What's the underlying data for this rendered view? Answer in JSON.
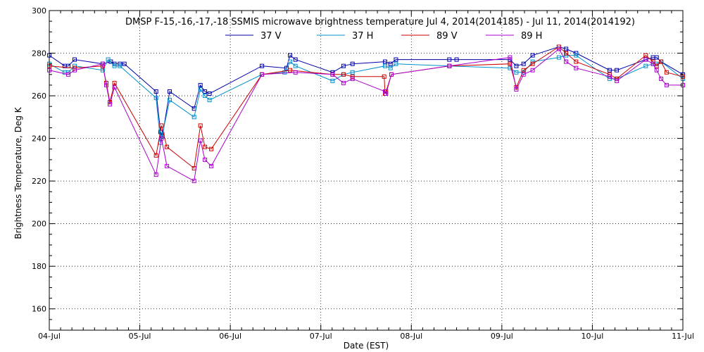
{
  "chart_data": {
    "type": "line",
    "title": "DMSP F-15,-16,-17,-18 SSMIS microwave brightness temperature Jul  4, 2014(2014185) - Jul 11, 2014(2014192)",
    "xlabel": "Date (EST)",
    "ylabel": "Brightness Temperature, Deg K",
    "xlim": [
      0,
      7
    ],
    "ylim": [
      150,
      300
    ],
    "y_ticks": [
      160,
      180,
      200,
      220,
      240,
      260,
      280,
      300
    ],
    "x_ticks": [
      0,
      1,
      2,
      3,
      4,
      5,
      6,
      7
    ],
    "x_tick_labels": [
      "04-Jul",
      "05-Jul",
      "06-Jul",
      "07-Jul",
      "08-Jul",
      "09-Jul",
      "10-Jul",
      "11-Jul"
    ],
    "x_units": "days since 04-Jul 00:00 EST",
    "grid": true,
    "legend_position": "top",
    "series": [
      {
        "name": "37 V",
        "color": "#0000aa",
        "x": [
          0.0,
          0.17,
          0.21,
          0.28,
          0.59,
          0.68,
          0.72,
          0.78,
          0.83,
          1.18,
          1.23,
          1.25,
          1.33,
          1.6,
          1.67,
          1.72,
          1.77,
          2.35,
          2.62,
          2.66,
          2.72,
          3.13,
          3.25,
          3.35,
          3.71,
          3.77,
          3.83,
          4.42,
          4.5,
          5.09,
          5.16,
          5.24,
          5.34,
          5.63,
          5.71,
          5.82,
          6.19,
          6.27,
          6.59,
          6.67,
          6.71,
          6.76,
          7.0
        ],
        "y": [
          279,
          274,
          274,
          277,
          275,
          276,
          275,
          275,
          275,
          262,
          243,
          241,
          262,
          254,
          265,
          262,
          261,
          274,
          273,
          279,
          277,
          271,
          274,
          275,
          276,
          275,
          277,
          277,
          277,
          277,
          274,
          275,
          279,
          283,
          282,
          280,
          272,
          272,
          277,
          278,
          278,
          276,
          270
        ]
      },
      {
        "name": "37 H",
        "color": "#0090cc",
        "x": [
          0.0,
          0.17,
          0.21,
          0.28,
          0.59,
          0.65,
          0.72,
          0.78,
          1.18,
          1.23,
          1.25,
          1.33,
          1.6,
          1.67,
          1.72,
          1.77,
          2.35,
          2.6,
          2.66,
          2.72,
          3.13,
          3.25,
          3.35,
          3.71,
          3.77,
          3.83,
          4.42,
          5.09,
          5.16,
          5.24,
          5.34,
          5.63,
          5.71,
          5.82,
          6.19,
          6.27,
          6.59,
          6.67,
          6.71,
          6.76,
          7.0
        ],
        "y": [
          275,
          271,
          271,
          274,
          272,
          277,
          274,
          274,
          259,
          238,
          242,
          258,
          250,
          263,
          260,
          258,
          270,
          271,
          276,
          274,
          267,
          270,
          271,
          274,
          273,
          275,
          274,
          273,
          271,
          271,
          276,
          278,
          279,
          279,
          268,
          268,
          274,
          275,
          275,
          276,
          268
        ]
      },
      {
        "name": "89 V",
        "color": "#cc0000",
        "x": [
          0.0,
          0.28,
          0.59,
          0.63,
          0.67,
          0.72,
          1.18,
          1.24,
          1.3,
          1.6,
          1.67,
          1.72,
          1.79,
          2.35,
          2.66,
          3.13,
          3.25,
          3.35,
          3.7,
          3.71,
          3.72,
          3.78,
          4.42,
          5.09,
          5.16,
          5.24,
          5.34,
          5.63,
          5.71,
          5.82,
          6.19,
          6.27,
          6.59,
          6.67,
          6.71,
          6.76,
          6.82,
          7.0
        ],
        "y": [
          274,
          273,
          274,
          266,
          257,
          266,
          232,
          246,
          236,
          226,
          246,
          236,
          235,
          270,
          272,
          270,
          270,
          269,
          269,
          261,
          262,
          270,
          274,
          275,
          264,
          272,
          275,
          283,
          280,
          276,
          270,
          268,
          279,
          276,
          274,
          276,
          271,
          269
        ]
      },
      {
        "name": "89 H",
        "color": "#aa00cc",
        "x": [
          0.0,
          0.21,
          0.28,
          0.59,
          0.63,
          0.67,
          0.72,
          1.18,
          1.24,
          1.3,
          1.6,
          1.67,
          1.72,
          1.79,
          2.35,
          2.72,
          3.13,
          3.25,
          3.35,
          3.71,
          3.72,
          3.78,
          4.42,
          5.09,
          5.16,
          5.24,
          5.34,
          5.63,
          5.71,
          5.82,
          6.19,
          6.27,
          6.59,
          6.67,
          6.71,
          6.76,
          6.82,
          7.0
        ],
        "y": [
          272,
          270,
          272,
          275,
          265,
          256,
          264,
          223,
          240,
          227,
          220,
          239,
          230,
          227,
          270,
          271,
          270,
          266,
          268,
          262,
          261,
          270,
          274,
          278,
          263,
          270,
          272,
          282,
          276,
          273,
          269,
          267,
          277,
          275,
          272,
          268,
          265,
          265
        ]
      }
    ]
  }
}
